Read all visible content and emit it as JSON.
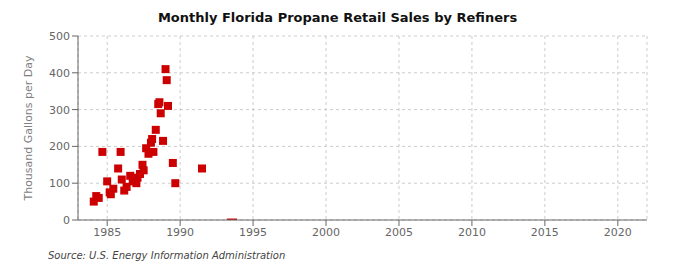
{
  "chart_data": {
    "type": "scatter",
    "title": "Monthly Florida Propane Retail Sales by Refiners",
    "ylabel": "Thousand Gallons per Day",
    "source": "Source: U.S. Energy Information Administration",
    "xlim": [
      1983,
      2022
    ],
    "ylim": [
      0,
      500
    ],
    "xticks": [
      1985,
      1990,
      1995,
      2000,
      2005,
      2010,
      2015,
      2020
    ],
    "yticks": [
      0,
      100,
      200,
      300,
      400,
      500
    ],
    "grid": true,
    "series": [
      {
        "type": "scatter",
        "color": "#cc0000",
        "marker": "square",
        "x": [
          1984.08,
          1984.25,
          1984.42,
          1984.67,
          1985.0,
          1985.17,
          1985.25,
          1985.42,
          1985.75,
          1985.92,
          1986.0,
          1986.17,
          1986.33,
          1986.58,
          1986.75,
          1987.0,
          1987.08,
          1987.25,
          1987.42,
          1987.5,
          1987.67,
          1987.83,
          1988.0,
          1988.08,
          1988.17,
          1988.33,
          1988.5,
          1988.58,
          1988.67,
          1988.83,
          1989.0,
          1989.08,
          1989.17,
          1989.5,
          1989.67,
          1991.5
        ],
        "values": [
          50,
          65,
          60,
          185,
          105,
          75,
          70,
          85,
          140,
          185,
          110,
          80,
          90,
          120,
          105,
          100,
          115,
          125,
          150,
          135,
          195,
          180,
          210,
          220,
          185,
          245,
          315,
          320,
          290,
          215,
          410,
          380,
          310,
          155,
          100,
          140
        ]
      },
      {
        "type": "bar",
        "color": "#cc0000",
        "x": [
          1993.2
        ],
        "widths": [
          0.7
        ],
        "bottoms": [
          -4
        ],
        "values": [
          4
        ]
      }
    ]
  }
}
